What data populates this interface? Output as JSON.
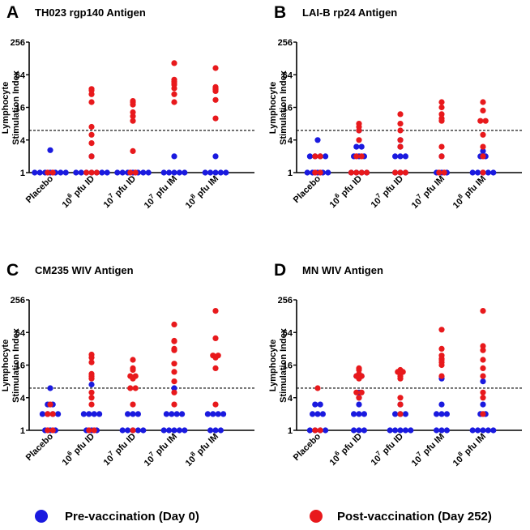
{
  "legend": {
    "pre": {
      "label": "Pre-vaccination (Day 0)",
      "color": "#1a1adf"
    },
    "post": {
      "label": "Post-vaccination (Day 252)",
      "color": "#e8191c"
    }
  },
  "chart_data": [
    {
      "type": "scatter",
      "letter": "A",
      "title": "TH023 rgp140 Antigen",
      "ylabel": [
        "Lymphocyte",
        "Stimulation Index"
      ],
      "yscale": "log2",
      "ylim": [
        1,
        256
      ],
      "yticks": [
        1,
        4,
        16,
        64,
        256
      ],
      "threshold": 6,
      "categories": [
        "Placebo",
        "10^6 pfu ID",
        "10^7 pfu ID",
        "10^7 pfu IM",
        "10^8 pfu IM"
      ],
      "series": [
        {
          "name": "Pre-vaccination (Day 0)",
          "values": [
            [
              1,
              1,
              1,
              1,
              1,
              1,
              1,
              2.6
            ],
            [
              1,
              1,
              1,
              1,
              1,
              1,
              1,
              2
            ],
            [
              1,
              1,
              1,
              1,
              1,
              1,
              1
            ],
            [
              1,
              1,
              1,
              1,
              1,
              2
            ],
            [
              1,
              1,
              1,
              1,
              1,
              2
            ]
          ]
        },
        {
          "name": "Post-vaccination (Day 252)",
          "values": [
            [
              1,
              1
            ],
            [
              1,
              1,
              1,
              2,
              3.5,
              5,
              7,
              20,
              28,
              35,
              33
            ],
            [
              1,
              1,
              2.5,
              9,
              11,
              13,
              18,
              20,
              21
            ],
            [
              20,
              28,
              36,
              42,
              45,
              48,
              52,
              105
            ],
            [
              10,
              22,
              32,
              34,
              35,
              36,
              38,
              85
            ]
          ]
        }
      ]
    },
    {
      "type": "scatter",
      "letter": "B",
      "title": "LAI-B rp24 Antigen",
      "ylabel": [
        "Lymphocyte",
        "Stimulation Index"
      ],
      "yscale": "log2",
      "ylim": [
        1,
        256
      ],
      "yticks": [
        1,
        4,
        16,
        64,
        256
      ],
      "threshold": 6,
      "categories": [
        "Placebo",
        "10^6 pfu ID",
        "10^7 pfu ID",
        "10^7 pfu IM",
        "10^8 pfu IM"
      ],
      "series": [
        {
          "name": "Pre-vaccination (Day 0)",
          "values": [
            [
              1,
              1,
              1,
              1,
              1,
              2,
              2,
              2,
              2,
              4
            ],
            [
              1,
              1,
              1,
              1,
              2,
              2,
              2,
              3,
              3,
              6
            ],
            [
              1,
              1,
              1,
              2,
              2,
              2,
              3,
              4
            ],
            [
              1,
              1,
              1,
              2
            ],
            [
              1,
              1,
              1,
              1,
              1,
              2,
              2,
              2.5
            ]
          ]
        },
        {
          "name": "Post-vaccination (Day 252)",
          "values": [
            [
              1,
              1,
              2,
              2
            ],
            [
              1,
              1,
              1,
              1,
              2,
              2,
              4,
              6,
              7,
              8
            ],
            [
              1,
              1,
              1,
              3,
              4,
              6,
              8,
              12
            ],
            [
              1,
              1,
              2,
              3,
              9,
              10,
              12,
              16,
              20
            ],
            [
              1,
              2,
              3,
              5,
              9,
              9,
              14,
              20
            ]
          ]
        }
      ]
    },
    {
      "type": "scatter",
      "letter": "C",
      "title": "CM235 WIV Antigen",
      "ylabel": [
        "Lymphocyte",
        "Stimulation Index"
      ],
      "yscale": "log2",
      "ylim": [
        1,
        256
      ],
      "yticks": [
        1,
        4,
        16,
        64,
        256
      ],
      "threshold": 6,
      "categories": [
        "Placebo",
        "10^6 pfu ID",
        "10^7 pfu ID",
        "10^7 pfu IM",
        "10^8 pfu IM"
      ],
      "series": [
        {
          "name": "Pre-vaccination (Day 0)",
          "values": [
            [
              1,
              1,
              1,
              2,
              2,
              2,
              2,
              3,
              3,
              6
            ],
            [
              1,
              1,
              1,
              2,
              2,
              2,
              2,
              7
            ],
            [
              1,
              1,
              1,
              1,
              1,
              2,
              2,
              2
            ],
            [
              1,
              1,
              1,
              1,
              1,
              2,
              2,
              2,
              2,
              6
            ],
            [
              1,
              1,
              1,
              2,
              2,
              2,
              2
            ]
          ]
        },
        {
          "name": "Post-vaccination (Day 252)",
          "values": [
            [
              1,
              1,
              2,
              2,
              3
            ],
            [
              1,
              1,
              3,
              4,
              5,
              9,
              10,
              11,
              18,
              22,
              25
            ],
            [
              1,
              3,
              6,
              6,
              9,
              10,
              10,
              13,
              14,
              20
            ],
            [
              3,
              5,
              8,
              12,
              17,
              30,
              32,
              44,
              45,
              90
            ],
            [
              3,
              14,
              22,
              24,
              24,
              50,
              160
            ]
          ]
        }
      ]
    },
    {
      "type": "scatter",
      "letter": "D",
      "title": "MN WIV Antigen",
      "ylabel": [
        "Lymphocyte",
        "Stimulation Index"
      ],
      "yscale": "log2",
      "ylim": [
        1,
        256
      ],
      "yticks": [
        1,
        4,
        16,
        64,
        256
      ],
      "threshold": 6,
      "categories": [
        "Placebo",
        "10^6 pfu ID",
        "10^7 pfu ID",
        "10^7 pfu IM",
        "10^8 pfu IM"
      ],
      "series": [
        {
          "name": "Pre-vaccination (Day 0)",
          "values": [
            [
              1,
              1,
              1,
              1,
              2,
              2,
              2,
              3,
              3
            ],
            [
              1,
              1,
              1,
              2,
              2,
              2,
              3,
              4,
              5,
              10,
              10
            ],
            [
              1,
              1,
              1,
              1,
              1,
              2,
              2,
              2,
              3
            ],
            [
              1,
              1,
              1,
              2,
              2,
              2,
              3,
              9
            ],
            [
              1,
              1,
              1,
              1,
              1,
              2,
              2,
              3,
              8
            ]
          ]
        },
        {
          "name": "Post-vaccination (Day 252)",
          "values": [
            [
              1,
              1,
              6
            ],
            [
              4,
              5,
              5,
              9,
              10,
              10,
              11,
              13,
              14
            ],
            [
              2,
              3,
              4,
              9,
              10,
              11,
              12,
              12,
              13
            ],
            [
              10,
              16,
              18,
              20,
              21,
              24,
              32,
              72
            ],
            [
              2,
              4,
              5,
              10,
              14,
              20,
              30,
              36,
              160
            ]
          ]
        }
      ]
    }
  ]
}
